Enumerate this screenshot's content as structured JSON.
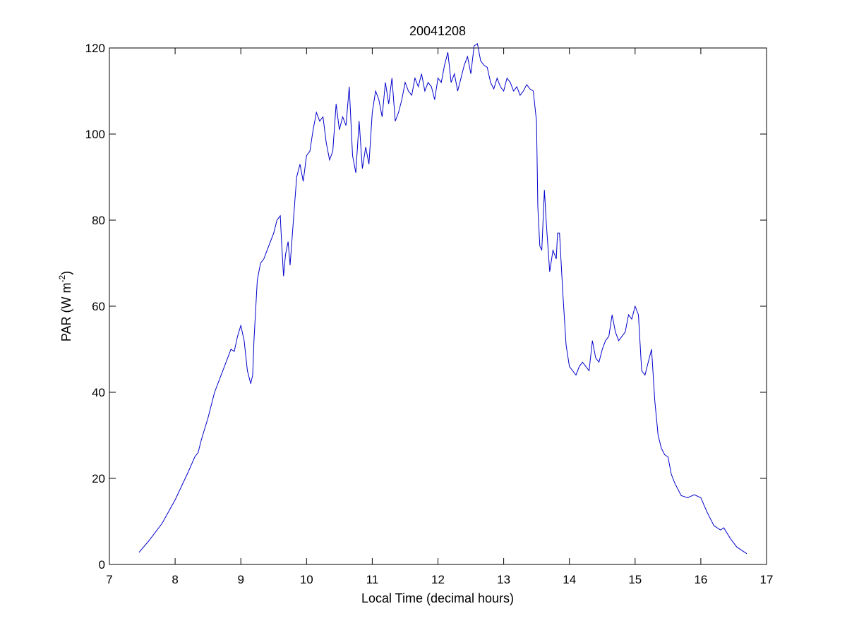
{
  "chart_data": {
    "type": "line",
    "title": "20041208",
    "xlabel": "Local Time (decimal hours)",
    "ylabel": {
      "base": "PAR (W m",
      "superscript": "-2",
      "tail": ")"
    },
    "xlim": [
      7,
      17
    ],
    "ylim": [
      0,
      120
    ],
    "xticks": [
      7,
      8,
      9,
      10,
      11,
      12,
      13,
      14,
      15,
      16,
      17
    ],
    "yticks": [
      0,
      20,
      40,
      60,
      80,
      100,
      120
    ],
    "grid": false,
    "legend": "none",
    "series": [
      {
        "color": "#0000cc",
        "x": [
          7.45,
          7.6,
          7.8,
          8.0,
          8.2,
          8.3,
          8.35,
          8.4,
          8.5,
          8.6,
          8.7,
          8.8,
          8.85,
          8.9,
          8.95,
          9.0,
          9.05,
          9.1,
          9.15,
          9.18,
          9.2,
          9.25,
          9.3,
          9.35,
          9.4,
          9.5,
          9.55,
          9.6,
          9.62,
          9.65,
          9.68,
          9.72,
          9.75,
          9.8,
          9.85,
          9.9,
          9.95,
          10.0,
          10.05,
          10.1,
          10.15,
          10.2,
          10.25,
          10.3,
          10.35,
          10.4,
          10.45,
          10.5,
          10.55,
          10.6,
          10.65,
          10.7,
          10.75,
          10.8,
          10.85,
          10.9,
          10.95,
          11.0,
          11.05,
          11.1,
          11.15,
          11.2,
          11.25,
          11.3,
          11.35,
          11.4,
          11.45,
          11.5,
          11.55,
          11.6,
          11.65,
          11.7,
          11.75,
          11.8,
          11.85,
          11.9,
          11.95,
          12.0,
          12.05,
          12.1,
          12.15,
          12.2,
          12.25,
          12.3,
          12.35,
          12.4,
          12.45,
          12.5,
          12.55,
          12.6,
          12.65,
          12.7,
          12.75,
          12.8,
          12.85,
          12.9,
          12.95,
          13.0,
          13.05,
          13.1,
          13.15,
          13.2,
          13.25,
          13.3,
          13.35,
          13.4,
          13.45,
          13.5,
          13.52,
          13.55,
          13.58,
          13.62,
          13.65,
          13.7,
          13.75,
          13.8,
          13.82,
          13.85,
          13.9,
          13.95,
          14.0,
          14.05,
          14.1,
          14.15,
          14.2,
          14.25,
          14.3,
          14.35,
          14.4,
          14.45,
          14.5,
          14.55,
          14.6,
          14.65,
          14.7,
          14.75,
          14.8,
          14.85,
          14.9,
          14.95,
          15.0,
          15.05,
          15.1,
          15.15,
          15.2,
          15.25,
          15.3,
          15.35,
          15.4,
          15.45,
          15.5,
          15.55,
          15.6,
          15.7,
          15.8,
          15.9,
          16.0,
          16.1,
          16.2,
          16.3,
          16.35,
          16.45,
          16.55,
          16.6,
          16.7
        ],
        "y": [
          2.8,
          5.5,
          9.5,
          15.0,
          21.5,
          25.0,
          26.0,
          29.0,
          34.0,
          40.0,
          44.0,
          48.0,
          50.0,
          49.5,
          53.0,
          55.5,
          52.0,
          45.0,
          42.0,
          44.0,
          52.0,
          66.0,
          70.0,
          71.0,
          73.0,
          77.0,
          80.0,
          81.0,
          75.0,
          67.0,
          72.0,
          75.0,
          69.5,
          80.0,
          90.0,
          93.0,
          89.0,
          95.0,
          96.0,
          101.0,
          105.0,
          103.0,
          104.0,
          98.0,
          94.0,
          96.0,
          107.0,
          101.0,
          104.0,
          102.0,
          111.0,
          95.0,
          91.0,
          103.0,
          92.0,
          97.0,
          93.0,
          105.0,
          110.0,
          108.0,
          104.0,
          112.0,
          107.0,
          113.0,
          103.0,
          105.0,
          108.0,
          112.0,
          110.0,
          109.0,
          113.0,
          111.0,
          114.0,
          110.0,
          112.0,
          111.0,
          108.0,
          113.0,
          112.0,
          116.0,
          119.0,
          112.0,
          114.0,
          110.0,
          113.0,
          116.0,
          118.0,
          114.0,
          120.5,
          121.0,
          117.0,
          116.0,
          115.5,
          112.0,
          110.5,
          113.0,
          111.0,
          110.0,
          113.0,
          112.0,
          110.0,
          111.0,
          109.0,
          110.0,
          111.5,
          110.5,
          110.0,
          103.0,
          83.0,
          74.0,
          73.0,
          87.0,
          79.0,
          68.0,
          73.0,
          71.0,
          77.0,
          77.0,
          63.0,
          51.0,
          46.0,
          45.0,
          44.0,
          46.0,
          47.0,
          46.0,
          45.0,
          52.0,
          48.0,
          47.0,
          50.0,
          52.0,
          53.0,
          58.0,
          54.0,
          52.0,
          53.0,
          54.0,
          58.0,
          57.0,
          60.0,
          58.0,
          45.0,
          44.0,
          47.0,
          50.0,
          38.0,
          30.0,
          27.0,
          25.5,
          25.0,
          21.0,
          19.0,
          16.0,
          15.5,
          16.2,
          15.5,
          12.0,
          9.0,
          8.0,
          8.5,
          6.0,
          4.0,
          3.5,
          2.5
        ]
      }
    ]
  }
}
